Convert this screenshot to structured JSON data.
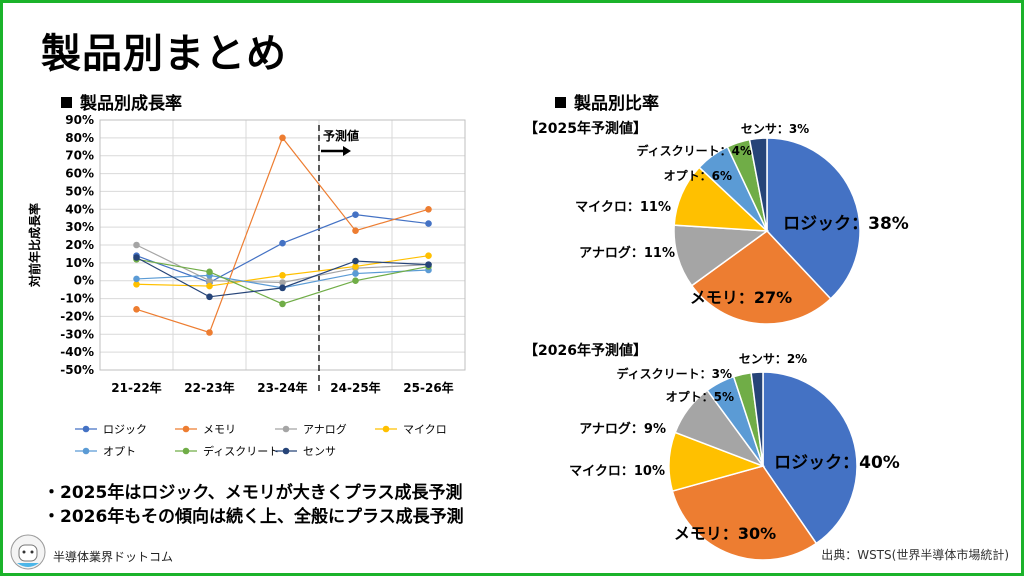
{
  "page": {
    "title": "製品別まとめ",
    "growth_heading": "製品別成長率",
    "share_heading": "製品別比率",
    "bullets": [
      "・2025年はロジック、メモリが大きくプラス成長予測",
      "・2026年もその傾向は続く上、全般にプラス成長予測"
    ],
    "logo_text": "半導体業界ドットコム",
    "source": "出典：WSTS(世界半導体市場統計)"
  },
  "chart_data": [
    {
      "type": "line",
      "title": "製品別成長率",
      "ylabel": "対前年比成長率",
      "categories": [
        "21-22年",
        "22-23年",
        "23-24年",
        "24-25年",
        "25-26年"
      ],
      "ylim": [
        -50,
        90
      ],
      "yticks": [
        "90%",
        "80%",
        "70%",
        "60%",
        "50%",
        "40%",
        "30%",
        "20%",
        "10%",
        "0%",
        "-10%",
        "-20%",
        "-30%",
        "-40%",
        "-50%"
      ],
      "annotation": "予測値",
      "series": [
        {
          "name": "ロジック",
          "color": "#4472c4",
          "values": [
            14,
            -1,
            21,
            37,
            32
          ]
        },
        {
          "name": "メモリ",
          "color": "#ed7d31",
          "values": [
            -16,
            -29,
            80,
            28,
            40
          ]
        },
        {
          "name": "アナログ",
          "color": "#a5a5a5",
          "values": [
            20,
            0,
            -1,
            7,
            9
          ]
        },
        {
          "name": "マイクロ",
          "color": "#ffc000",
          "values": [
            -2,
            -3,
            3,
            8,
            14
          ]
        },
        {
          "name": "オプト",
          "color": "#5b9bd5",
          "values": [
            1,
            3,
            -4,
            4,
            6
          ]
        },
        {
          "name": "ディスクリート",
          "color": "#70ad47",
          "values": [
            12,
            5,
            -13,
            0,
            8
          ]
        },
        {
          "name": "センサ",
          "color": "#264478",
          "values": [
            13,
            -9,
            -4,
            11,
            9
          ]
        }
      ]
    },
    {
      "type": "pie",
      "title": "【2025年予測値】",
      "slices": [
        {
          "name": "ロジック",
          "value": 38,
          "label": "ロジック：38%",
          "color": "#4472c4"
        },
        {
          "name": "メモリ",
          "value": 27,
          "label": "メモリ：27%",
          "color": "#ed7d31"
        },
        {
          "name": "アナログ",
          "value": 11,
          "label": "アナログ：11%",
          "color": "#a5a5a5"
        },
        {
          "name": "マイクロ",
          "value": 11,
          "label": "マイクロ：11%",
          "color": "#ffc000"
        },
        {
          "name": "オプト",
          "value": 6,
          "label": "オプト：6%",
          "color": "#5b9bd5"
        },
        {
          "name": "ディスクリート",
          "value": 4,
          "label": "ディスクリート：4%",
          "color": "#70ad47"
        },
        {
          "name": "センサ",
          "value": 3,
          "label": "センサ：3%",
          "color": "#264478"
        }
      ]
    },
    {
      "type": "pie",
      "title": "【2026年予測値】",
      "slices": [
        {
          "name": "ロジック",
          "value": 40,
          "label": "ロジック：40%",
          "color": "#4472c4"
        },
        {
          "name": "メモリ",
          "value": 30,
          "label": "メモリ：30%",
          "color": "#ed7d31"
        },
        {
          "name": "マイクロ",
          "value": 10,
          "label": "マイクロ：10%",
          "color": "#ffc000"
        },
        {
          "name": "アナログ",
          "value": 9,
          "label": "アナログ：9%",
          "color": "#a5a5a5"
        },
        {
          "name": "オプト",
          "value": 5,
          "label": "オプト：5%",
          "color": "#5b9bd5"
        },
        {
          "name": "ディスクリート",
          "value": 3,
          "label": "ディスクリート：3%",
          "color": "#70ad47"
        },
        {
          "name": "センサ",
          "value": 2,
          "label": "センサ：2%",
          "color": "#264478"
        }
      ]
    }
  ]
}
